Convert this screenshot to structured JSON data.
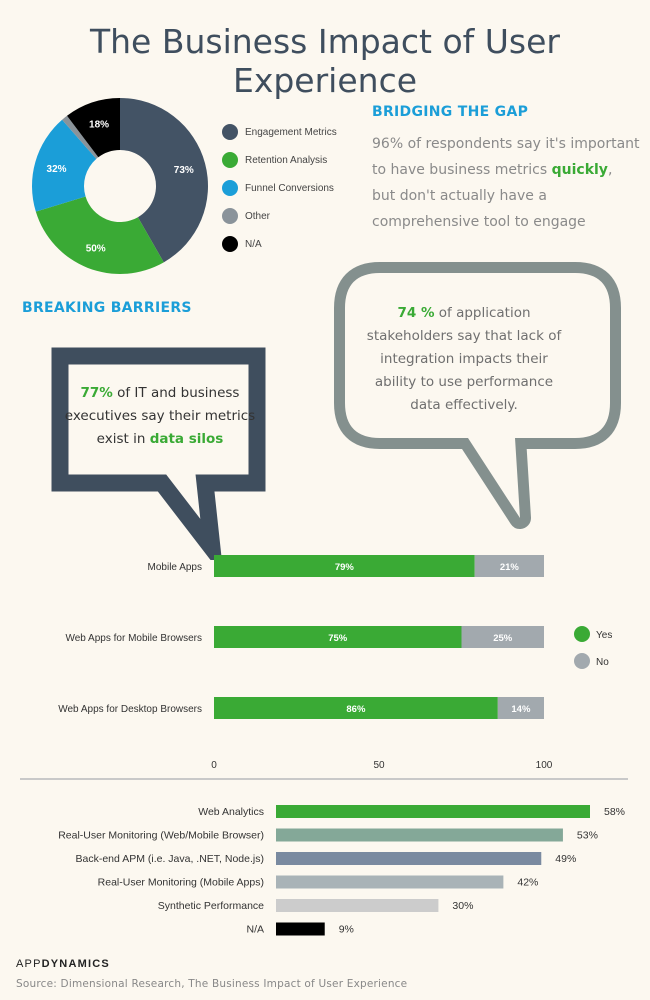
{
  "title": "The Business Impact of User Experience",
  "bridging": {
    "heading": "BRIDGING THE GAP",
    "text_before": "96% of respondents say it's important to have business metrics ",
    "highlight": "quickly",
    "text_after": ", but don't actually have a comprehensive tool to engage"
  },
  "barriers": {
    "heading": "BREAKING BARRIERS",
    "bubble1": {
      "pct": "77%",
      "text_mid": " of IT and business executives say their metrics exist in ",
      "highlight": "data silos"
    },
    "bubble2": {
      "pct": "74 %",
      "text": " of application stakeholders say that lack of integration impacts their ability to use performance data effectively."
    }
  },
  "colors": {
    "engagement": "#435365",
    "retention": "#3aaa35",
    "funnel": "#1b9ed8",
    "other": "#8a939a",
    "na": "#000000",
    "yes": "#3aaa35",
    "no": "#a2a9ae",
    "bubble1_border": "#3f4e5e",
    "bubble2_border": "#84908e"
  },
  "chart_data": [
    {
      "type": "pie",
      "donut": true,
      "labels": [
        "Engagement Metrics",
        "Retention Analysis",
        "Funnel Conversions",
        "Other",
        "N/A"
      ],
      "display_labels": [
        "73%",
        "50%",
        "32%",
        "",
        "18%"
      ],
      "values": [
        73,
        50,
        32,
        2,
        18
      ],
      "colors": [
        "#435365",
        "#3aaa35",
        "#1b9ed8",
        "#8a939a",
        "#000000"
      ],
      "legend_position": "right"
    },
    {
      "type": "bar",
      "orientation": "horizontal",
      "stacked": true,
      "categories": [
        "Mobile Apps",
        "Web Apps for Mobile Browsers",
        "Web Apps for Desktop Browsers"
      ],
      "series": [
        {
          "name": "Yes",
          "values": [
            79,
            75,
            86
          ],
          "color": "#3aaa35"
        },
        {
          "name": "No",
          "values": [
            21,
            25,
            14
          ],
          "color": "#a2a9ae"
        }
      ],
      "xticks": [
        0,
        50,
        100
      ],
      "xlim": [
        0,
        100
      ],
      "legend_position": "right"
    },
    {
      "type": "bar",
      "orientation": "horizontal",
      "categories": [
        "Web Analytics",
        "Real-User Monitoring (Web/Mobile Browser)",
        "Back-end APM (i.e. Java, .NET, Node.js)",
        "Real-User Monitoring (Mobile Apps)",
        "Synthetic Performance",
        "N/A"
      ],
      "values": [
        58,
        53,
        49,
        42,
        30,
        9
      ],
      "colors": [
        "#3aaa35",
        "#84a898",
        "#7a8aa0",
        "#a9b3b7",
        "#cccccc",
        "#000000"
      ],
      "unit": "%"
    }
  ],
  "footer": {
    "logo_app": "APP",
    "logo_dyn": "DYNAMICS",
    "source": "Source: Dimensional Research, The Business Impact of User Experience"
  }
}
